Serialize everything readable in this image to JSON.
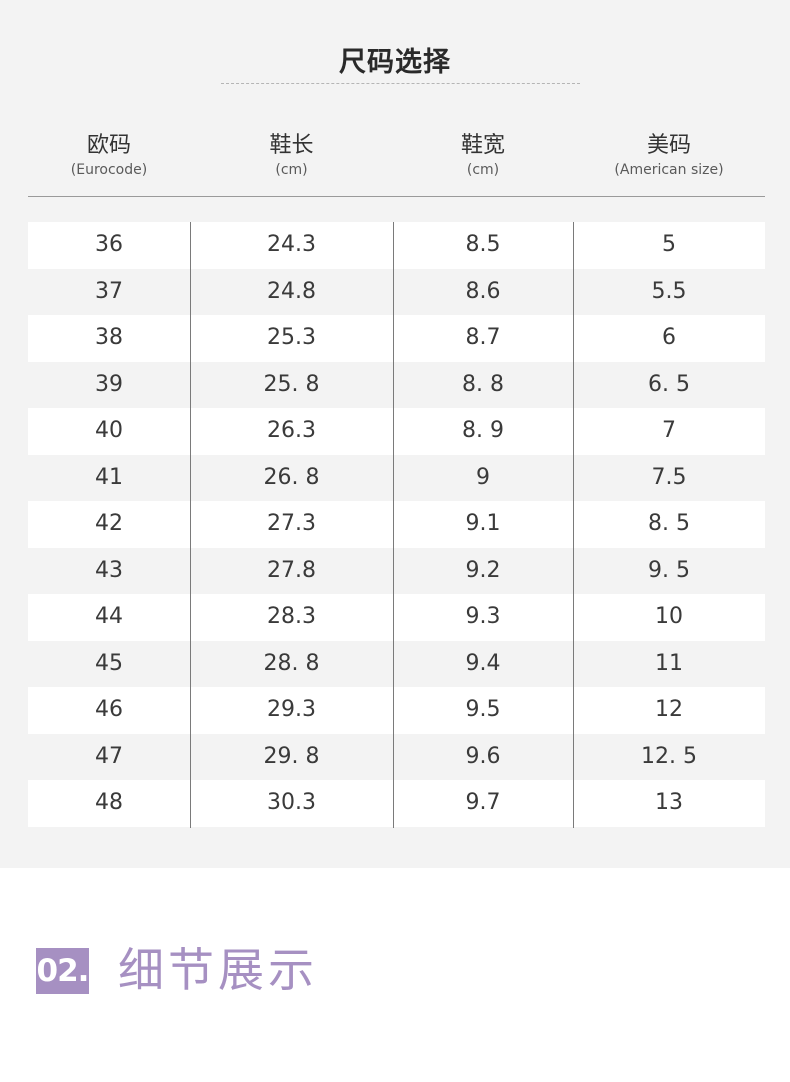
{
  "title": "尺码选择",
  "columns": [
    {
      "cn": "欧码",
      "en": "(Eurocode)"
    },
    {
      "cn": "鞋长",
      "en": "(cm)"
    },
    {
      "cn": "鞋宽",
      "en": "(cm)"
    },
    {
      "cn": "美码",
      "en": "(American size)"
    }
  ],
  "rows": [
    [
      "36",
      "24.3",
      "8.5",
      "5"
    ],
    [
      "37",
      "24.8",
      "8.6",
      "5.5"
    ],
    [
      "38",
      "25.3",
      "8.7",
      "6"
    ],
    [
      "39",
      "25. 8",
      "8. 8",
      "6. 5"
    ],
    [
      "40",
      "26.3",
      "8. 9",
      "7"
    ],
    [
      "41",
      "26. 8",
      "9",
      "7.5"
    ],
    [
      "42",
      "27.3",
      "9.1",
      "8. 5"
    ],
    [
      "43",
      "27.8",
      "9.2",
      "9. 5"
    ],
    [
      "44",
      "28.3",
      "9.3",
      "10"
    ],
    [
      "45",
      "28. 8",
      "9.4",
      "11"
    ],
    [
      "46",
      "29.3",
      "9.5",
      "12"
    ],
    [
      "47",
      "29. 8",
      "9.6",
      "12. 5"
    ],
    [
      "48",
      "30.3",
      "9.7",
      "13"
    ]
  ],
  "section": {
    "number": "02.",
    "title": "细节展示"
  },
  "colors": {
    "accent": "#a690c2",
    "panel": "#f3f3f3"
  }
}
